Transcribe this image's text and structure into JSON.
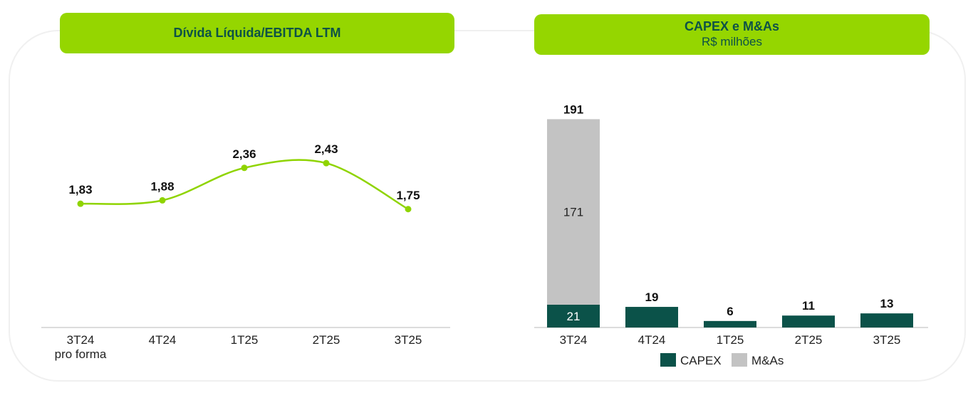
{
  "colors": {
    "line": "#8fd400",
    "capex": "#0b5249",
    "mna": "#c3c3c3",
    "header": "#95d600"
  },
  "chart_data": [
    {
      "type": "line",
      "title": "Dívida Líquida/EBITDA LTM",
      "categories": [
        "3T24",
        "4T24",
        "1T25",
        "2T25",
        "3T25"
      ],
      "category_sublabels": [
        "pro forma",
        "",
        "",
        "",
        ""
      ],
      "values": [
        1.83,
        1.88,
        2.36,
        2.43,
        1.75
      ],
      "data_labels": [
        "1,83",
        "1,88",
        "2,36",
        "2,43",
        "1,75"
      ],
      "ylim": [
        0,
        3
      ]
    },
    {
      "type": "bar",
      "stacked": true,
      "title": "CAPEX e M&As",
      "subtitle": "R$ milhões",
      "categories": [
        "3T24",
        "4T24",
        "1T25",
        "2T25",
        "3T25"
      ],
      "series": [
        {
          "name": "CAPEX",
          "values": [
            21,
            19,
            6,
            11,
            13
          ]
        },
        {
          "name": "M&As",
          "values": [
            171,
            0,
            0,
            0,
            0
          ]
        }
      ],
      "totals": [
        "191",
        "19",
        "6",
        "11",
        "13"
      ],
      "legend": "bottom",
      "ylim": [
        0,
        200
      ]
    }
  ]
}
